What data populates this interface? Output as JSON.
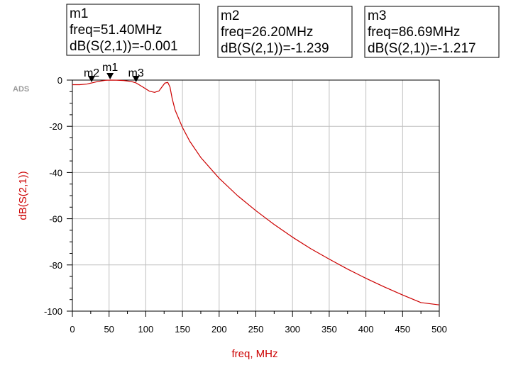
{
  "chart_data": {
    "type": "line",
    "ads_tag": "ADS",
    "xlabel": "freq, MHz",
    "ylabel": "dB(S(2,1))",
    "xlim": [
      0,
      500
    ],
    "ylim": [
      -100,
      0
    ],
    "x_ticks": [
      "0",
      "50",
      "100",
      "150",
      "200",
      "250",
      "300",
      "350",
      "400",
      "450",
      "500"
    ],
    "y_ticks": [
      "0",
      "-20",
      "-40",
      "-60",
      "-80",
      "-100"
    ],
    "grid": true,
    "colors": {
      "trace": "#cc0000",
      "axis_title": "#cc0000",
      "grid": "#c0c0c0"
    },
    "series": [
      {
        "name": "dB(S(2,1))",
        "x": [
          0,
          10,
          20,
          26.2,
          35,
          45,
          51.4,
          60,
          70,
          80,
          86.69,
          95,
          105,
          112,
          118,
          122,
          126,
          130,
          133,
          136,
          140,
          150,
          160,
          175,
          200,
          225,
          250,
          275,
          300,
          325,
          350,
          375,
          400,
          425,
          450,
          475,
          500
        ],
        "y": [
          -2.0,
          -2.0,
          -1.7,
          -1.239,
          -0.6,
          -0.1,
          -0.001,
          -0.05,
          -0.2,
          -0.6,
          -1.217,
          -2.8,
          -4.8,
          -5.3,
          -4.7,
          -3.0,
          -1.3,
          -1.0,
          -3.0,
          -8.0,
          -13.0,
          -20.5,
          -26.5,
          -33.5,
          -42.5,
          -50.0,
          -56.5,
          -62.5,
          -68.0,
          -73.0,
          -77.5,
          -81.8,
          -85.8,
          -89.5,
          -93.0,
          -96.3,
          -97.3
        ]
      }
    ],
    "markers": [
      {
        "name": "m1",
        "freq": 51.4,
        "value": -0.001,
        "line1": "m1",
        "line2": "freq=51.40MHz",
        "line3": "dB(S(2,1))=-0.001"
      },
      {
        "name": "m2",
        "freq": 26.2,
        "value": -1.239,
        "line1": "m2",
        "line2": "freq=26.20MHz",
        "line3": "dB(S(2,1))=-1.239"
      },
      {
        "name": "m3",
        "freq": 86.69,
        "value": -1.217,
        "line1": "m3",
        "line2": "freq=86.69MHz",
        "line3": "dB(S(2,1))=-1.217"
      }
    ]
  }
}
